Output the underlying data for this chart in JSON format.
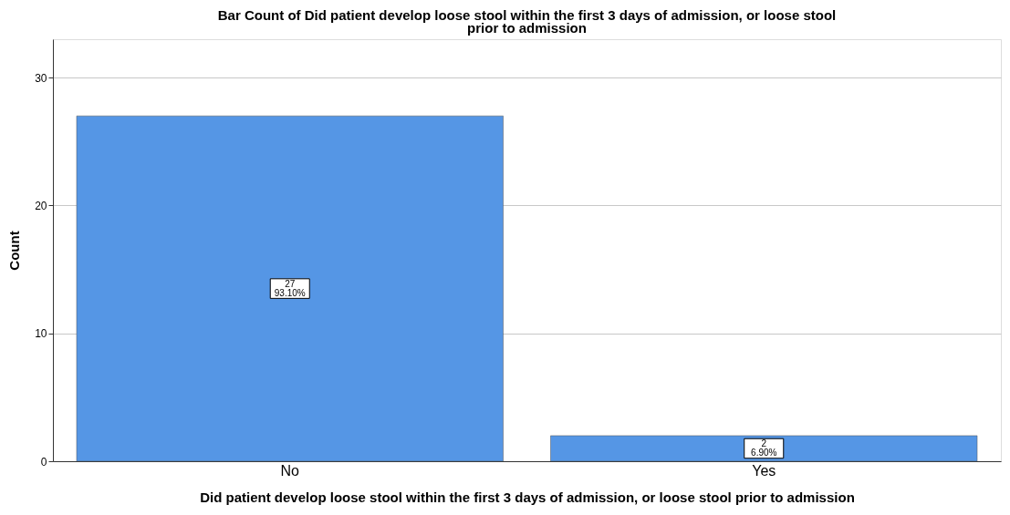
{
  "chart_data": {
    "type": "bar",
    "title": "Bar Count of Did patient develop loose stool within the first 3 days of admission, or loose stool prior to admission",
    "xlabel": "Did patient develop loose stool within the first 3 days of admission, or loose stool prior to admission",
    "ylabel": "Count",
    "categories": [
      "No",
      "Yes"
    ],
    "values": [
      27,
      2
    ],
    "value_labels": [
      "27\n93.10%",
      "2\n6.90%"
    ],
    "color": "#5596e5",
    "ylim": [
      0,
      33
    ],
    "yticks": [
      0,
      10,
      20,
      30
    ],
    "grid": "y"
  }
}
